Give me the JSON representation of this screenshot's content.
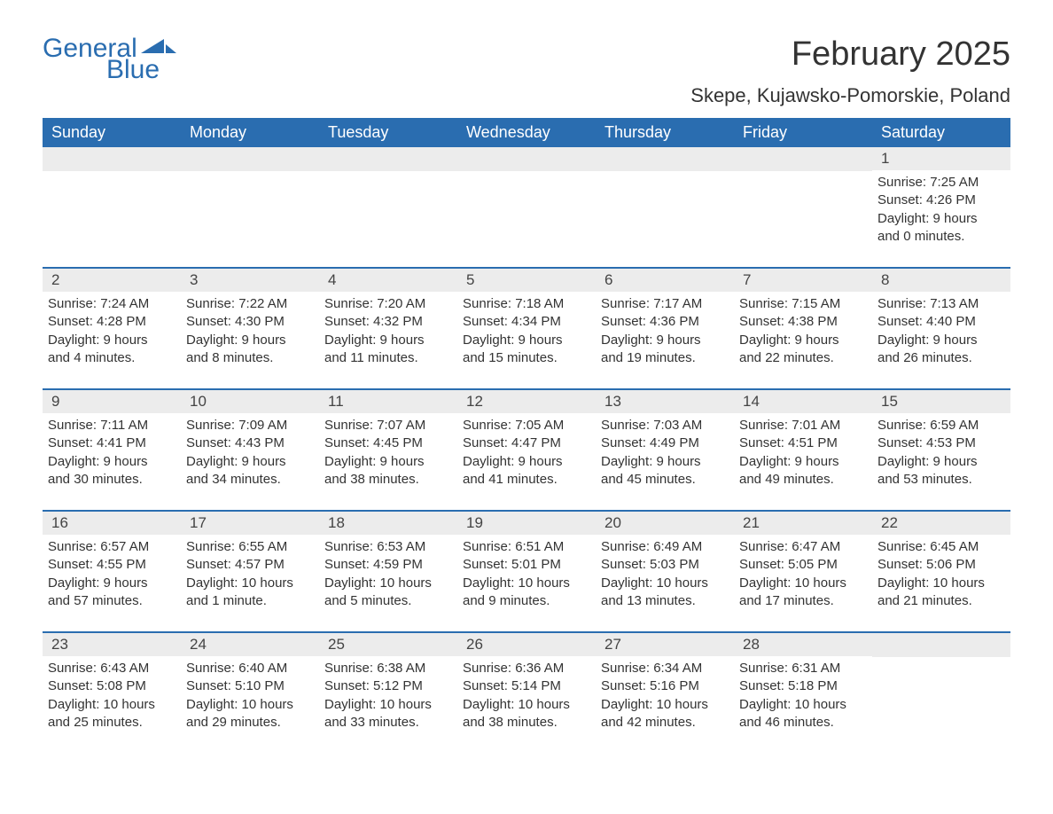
{
  "logo": {
    "text1": "General",
    "text2": "Blue",
    "brand_color": "#2a6db0"
  },
  "title": "February 2025",
  "location": "Skepe, Kujawsko-Pomorskie, Poland",
  "colors": {
    "header_bg": "#2a6db0",
    "header_text": "#ffffff",
    "day_number_bg": "#ececec",
    "border": "#2a6db0",
    "body_text": "#333333",
    "background": "#ffffff"
  },
  "fonts": {
    "title_size": 38,
    "location_size": 22,
    "weekday_size": 18,
    "daynum_size": 17,
    "detail_size": 15
  },
  "weekdays": [
    "Sunday",
    "Monday",
    "Tuesday",
    "Wednesday",
    "Thursday",
    "Friday",
    "Saturday"
  ],
  "weeks": [
    [
      {
        "day": "",
        "sunrise": "",
        "sunset": "",
        "daylight": ""
      },
      {
        "day": "",
        "sunrise": "",
        "sunset": "",
        "daylight": ""
      },
      {
        "day": "",
        "sunrise": "",
        "sunset": "",
        "daylight": ""
      },
      {
        "day": "",
        "sunrise": "",
        "sunset": "",
        "daylight": ""
      },
      {
        "day": "",
        "sunrise": "",
        "sunset": "",
        "daylight": ""
      },
      {
        "day": "",
        "sunrise": "",
        "sunset": "",
        "daylight": ""
      },
      {
        "day": "1",
        "sunrise": "Sunrise: 7:25 AM",
        "sunset": "Sunset: 4:26 PM",
        "daylight": "Daylight: 9 hours and 0 minutes."
      }
    ],
    [
      {
        "day": "2",
        "sunrise": "Sunrise: 7:24 AM",
        "sunset": "Sunset: 4:28 PM",
        "daylight": "Daylight: 9 hours and 4 minutes."
      },
      {
        "day": "3",
        "sunrise": "Sunrise: 7:22 AM",
        "sunset": "Sunset: 4:30 PM",
        "daylight": "Daylight: 9 hours and 8 minutes."
      },
      {
        "day": "4",
        "sunrise": "Sunrise: 7:20 AM",
        "sunset": "Sunset: 4:32 PM",
        "daylight": "Daylight: 9 hours and 11 minutes."
      },
      {
        "day": "5",
        "sunrise": "Sunrise: 7:18 AM",
        "sunset": "Sunset: 4:34 PM",
        "daylight": "Daylight: 9 hours and 15 minutes."
      },
      {
        "day": "6",
        "sunrise": "Sunrise: 7:17 AM",
        "sunset": "Sunset: 4:36 PM",
        "daylight": "Daylight: 9 hours and 19 minutes."
      },
      {
        "day": "7",
        "sunrise": "Sunrise: 7:15 AM",
        "sunset": "Sunset: 4:38 PM",
        "daylight": "Daylight: 9 hours and 22 minutes."
      },
      {
        "day": "8",
        "sunrise": "Sunrise: 7:13 AM",
        "sunset": "Sunset: 4:40 PM",
        "daylight": "Daylight: 9 hours and 26 minutes."
      }
    ],
    [
      {
        "day": "9",
        "sunrise": "Sunrise: 7:11 AM",
        "sunset": "Sunset: 4:41 PM",
        "daylight": "Daylight: 9 hours and 30 minutes."
      },
      {
        "day": "10",
        "sunrise": "Sunrise: 7:09 AM",
        "sunset": "Sunset: 4:43 PM",
        "daylight": "Daylight: 9 hours and 34 minutes."
      },
      {
        "day": "11",
        "sunrise": "Sunrise: 7:07 AM",
        "sunset": "Sunset: 4:45 PM",
        "daylight": "Daylight: 9 hours and 38 minutes."
      },
      {
        "day": "12",
        "sunrise": "Sunrise: 7:05 AM",
        "sunset": "Sunset: 4:47 PM",
        "daylight": "Daylight: 9 hours and 41 minutes."
      },
      {
        "day": "13",
        "sunrise": "Sunrise: 7:03 AM",
        "sunset": "Sunset: 4:49 PM",
        "daylight": "Daylight: 9 hours and 45 minutes."
      },
      {
        "day": "14",
        "sunrise": "Sunrise: 7:01 AM",
        "sunset": "Sunset: 4:51 PM",
        "daylight": "Daylight: 9 hours and 49 minutes."
      },
      {
        "day": "15",
        "sunrise": "Sunrise: 6:59 AM",
        "sunset": "Sunset: 4:53 PM",
        "daylight": "Daylight: 9 hours and 53 minutes."
      }
    ],
    [
      {
        "day": "16",
        "sunrise": "Sunrise: 6:57 AM",
        "sunset": "Sunset: 4:55 PM",
        "daylight": "Daylight: 9 hours and 57 minutes."
      },
      {
        "day": "17",
        "sunrise": "Sunrise: 6:55 AM",
        "sunset": "Sunset: 4:57 PM",
        "daylight": "Daylight: 10 hours and 1 minute."
      },
      {
        "day": "18",
        "sunrise": "Sunrise: 6:53 AM",
        "sunset": "Sunset: 4:59 PM",
        "daylight": "Daylight: 10 hours and 5 minutes."
      },
      {
        "day": "19",
        "sunrise": "Sunrise: 6:51 AM",
        "sunset": "Sunset: 5:01 PM",
        "daylight": "Daylight: 10 hours and 9 minutes."
      },
      {
        "day": "20",
        "sunrise": "Sunrise: 6:49 AM",
        "sunset": "Sunset: 5:03 PM",
        "daylight": "Daylight: 10 hours and 13 minutes."
      },
      {
        "day": "21",
        "sunrise": "Sunrise: 6:47 AM",
        "sunset": "Sunset: 5:05 PM",
        "daylight": "Daylight: 10 hours and 17 minutes."
      },
      {
        "day": "22",
        "sunrise": "Sunrise: 6:45 AM",
        "sunset": "Sunset: 5:06 PM",
        "daylight": "Daylight: 10 hours and 21 minutes."
      }
    ],
    [
      {
        "day": "23",
        "sunrise": "Sunrise: 6:43 AM",
        "sunset": "Sunset: 5:08 PM",
        "daylight": "Daylight: 10 hours and 25 minutes."
      },
      {
        "day": "24",
        "sunrise": "Sunrise: 6:40 AM",
        "sunset": "Sunset: 5:10 PM",
        "daylight": "Daylight: 10 hours and 29 minutes."
      },
      {
        "day": "25",
        "sunrise": "Sunrise: 6:38 AM",
        "sunset": "Sunset: 5:12 PM",
        "daylight": "Daylight: 10 hours and 33 minutes."
      },
      {
        "day": "26",
        "sunrise": "Sunrise: 6:36 AM",
        "sunset": "Sunset: 5:14 PM",
        "daylight": "Daylight: 10 hours and 38 minutes."
      },
      {
        "day": "27",
        "sunrise": "Sunrise: 6:34 AM",
        "sunset": "Sunset: 5:16 PM",
        "daylight": "Daylight: 10 hours and 42 minutes."
      },
      {
        "day": "28",
        "sunrise": "Sunrise: 6:31 AM",
        "sunset": "Sunset: 5:18 PM",
        "daylight": "Daylight: 10 hours and 46 minutes."
      },
      {
        "day": "",
        "sunrise": "",
        "sunset": "",
        "daylight": ""
      }
    ]
  ]
}
